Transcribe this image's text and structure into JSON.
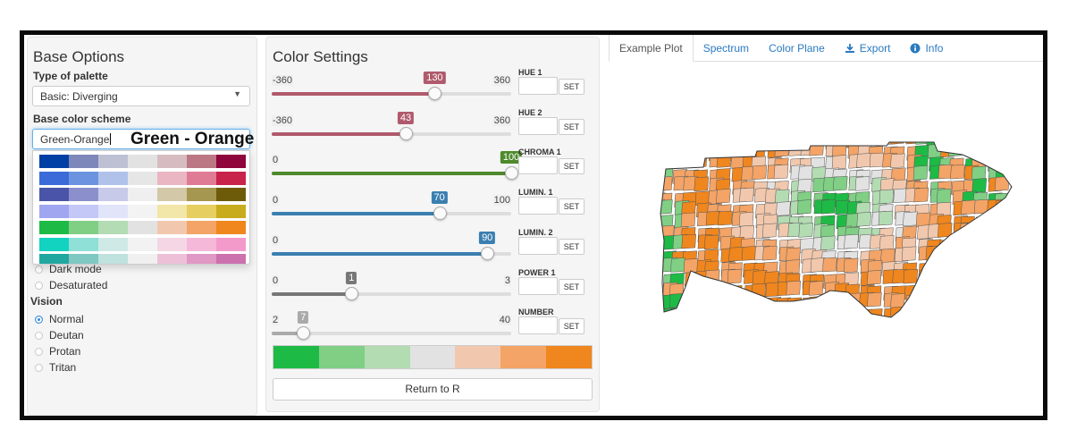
{
  "base_options": {
    "title": "Base Options",
    "palette_type_label": "Type of palette",
    "palette_type_value": "Basic: Diverging",
    "scheme_label": "Base color scheme",
    "scheme_value": "Green-Orange",
    "scheme_overlay": "Green - Orange",
    "palette_rows": [
      [
        "#023fa5",
        "#7d87b9",
        "#bec1d4",
        "#e2e2e2",
        "#d6bcc0",
        "#bb7784",
        "#8e063b"
      ],
      [
        "#3a6bd8",
        "#6b93e0",
        "#b0c2ea",
        "#e6e6e6",
        "#eab6c3",
        "#e07b95",
        "#c8234b"
      ],
      [
        "#4a54a8",
        "#8b90cc",
        "#c8caea",
        "#efefef",
        "#d3c8a8",
        "#a59650",
        "#6d5b09"
      ],
      [
        "#a0a6f0",
        "#c4c8f6",
        "#e2e4fa",
        "#f3f3f3",
        "#f2e6a8",
        "#e6cf60",
        "#c8ac1e"
      ],
      [
        "#1dbb45",
        "#80cf85",
        "#b3dcb3",
        "#e2e2e2",
        "#f1c8ad",
        "#f3a466",
        "#f0861e"
      ],
      [
        "#12d2c0",
        "#8fe0d6",
        "#cfeae6",
        "#f2f2f2",
        "#f4d6e4",
        "#f5b8d8",
        "#f39acb"
      ],
      [
        "#20a8a0",
        "#80c8c2",
        "#c0e2de",
        "#f0f0f0",
        "#eec0d8",
        "#e098c4",
        "#cc70ae"
      ]
    ],
    "options": [
      "Dark mode",
      "Desaturated"
    ],
    "vision_label": "Vision",
    "vision_options": [
      {
        "label": "Normal",
        "selected": true
      },
      {
        "label": "Deutan",
        "selected": false
      },
      {
        "label": "Protan",
        "selected": false
      },
      {
        "label": "Tritan",
        "selected": false
      }
    ]
  },
  "color_settings": {
    "title": "Color Settings",
    "sliders": [
      {
        "min": "-360",
        "max": "360",
        "value": "130",
        "minv": -360,
        "maxv": 360,
        "v": 130,
        "color": "#b05a6c",
        "label": "HUE 1",
        "set": "SET"
      },
      {
        "min": "-360",
        "max": "360",
        "value": "43",
        "minv": -360,
        "maxv": 360,
        "v": 43,
        "color": "#b05a6c",
        "label": "HUE 2",
        "set": "SET"
      },
      {
        "min": "0",
        "max": "",
        "value": "100",
        "minv": 0,
        "maxv": 100,
        "v": 100,
        "color": "#4e8a2c",
        "label": "CHROMA 1",
        "set": "SET"
      },
      {
        "min": "0",
        "max": "100",
        "value": "70",
        "minv": 0,
        "maxv": 100,
        "v": 70,
        "color": "#3a7fb0",
        "label": "LUMIN. 1",
        "set": "SET"
      },
      {
        "min": "0",
        "max": "",
        "value": "90",
        "minv": 0,
        "maxv": 100,
        "v": 90,
        "color": "#3a7fb0",
        "label": "LUMIN. 2",
        "set": "SET"
      },
      {
        "min": "0",
        "max": "3",
        "value": "1",
        "minv": 0,
        "maxv": 3,
        "v": 1,
        "color": "#777777",
        "label": "POWER 1",
        "set": "SET"
      },
      {
        "min": "2",
        "max": "40",
        "value": "7",
        "minv": 2,
        "maxv": 40,
        "v": 7,
        "color": "#aaaaaa",
        "label": "NUMBER",
        "set": "SET"
      }
    ],
    "swatches": [
      "#1dbb45",
      "#80cf85",
      "#b3dcb3",
      "#e2e2e2",
      "#f1c8ad",
      "#f3a466",
      "#f0861e"
    ],
    "return_label": "Return to R"
  },
  "tabs": [
    {
      "label": "Example Plot",
      "active": true,
      "icon": ""
    },
    {
      "label": "Spectrum",
      "active": false,
      "icon": ""
    },
    {
      "label": "Color Plane",
      "active": false,
      "icon": ""
    },
    {
      "label": "Export",
      "active": false,
      "icon": "download-icon"
    },
    {
      "label": "Info",
      "active": false,
      "icon": "info-icon"
    }
  ],
  "map": {
    "description_colors": {
      "dark_green": "#1dbb45",
      "mid_green": "#80cf85",
      "light_green": "#b3dcb3",
      "neutral": "#e2e2e2",
      "light_orange": "#f1c8ad",
      "mid_orange": "#f3a466",
      "dark_orange": "#f0861e"
    }
  }
}
